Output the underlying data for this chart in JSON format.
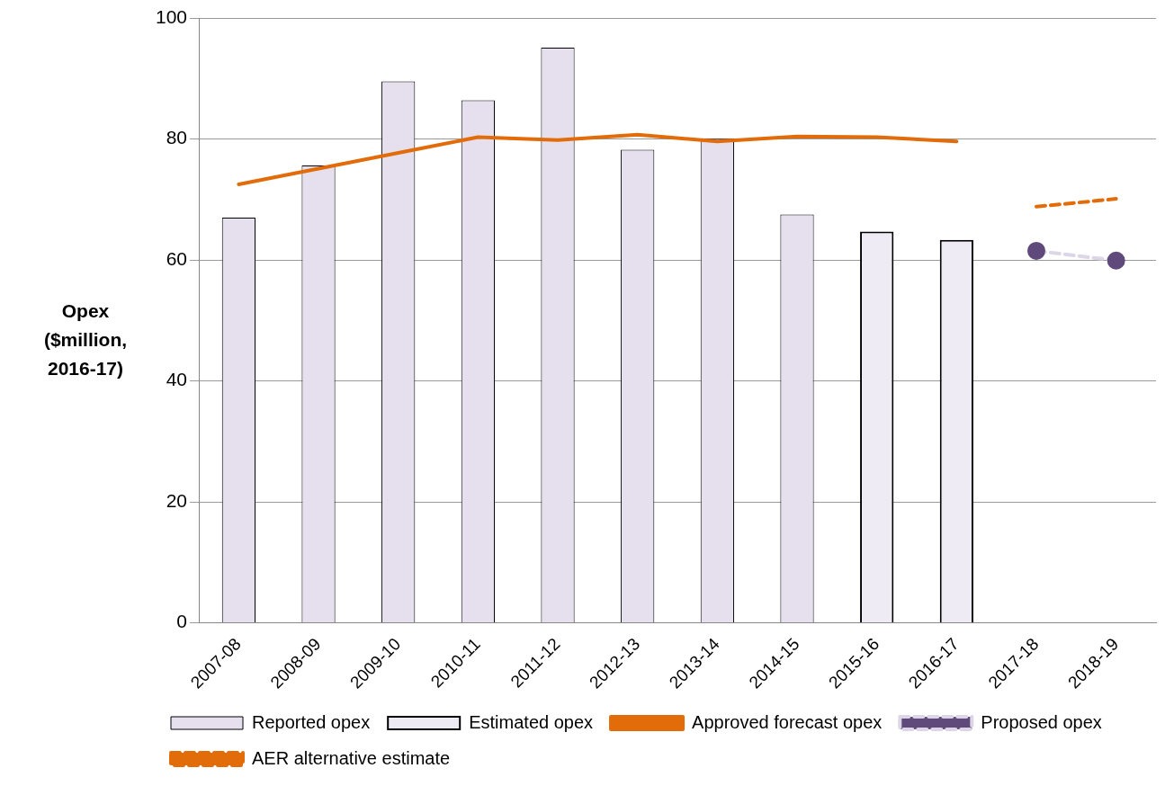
{
  "chart_data": {
    "type": "bar",
    "ylabel": "Opex ($million, 2016-17)",
    "categories": [
      "2007-08",
      "2008-09",
      "2009-10",
      "2010-11",
      "2011-12",
      "2012-13",
      "2013-14",
      "2014-15",
      "2015-16",
      "2016-17",
      "2017-18",
      "2018-19"
    ],
    "series": [
      {
        "name": "Reported opex",
        "color": "#e6e0ee",
        "values": [
          67.0,
          75.6,
          89.5,
          86.4,
          95.1,
          78.2,
          80.1,
          67.5,
          null,
          null,
          null,
          null
        ]
      },
      {
        "name": "Estimated opex",
        "color": "#efebf4",
        "values": [
          null,
          null,
          null,
          null,
          null,
          null,
          null,
          null,
          64.7,
          63.3,
          null,
          null
        ]
      },
      {
        "name": "Approved forecast opex",
        "type": "line",
        "color": "#e36c0a",
        "marker": "none",
        "line_style": "solid",
        "values": [
          72.5,
          75.1,
          77.7,
          80.3,
          79.8,
          80.7,
          79.6,
          80.4,
          80.3,
          79.6,
          null,
          null
        ]
      },
      {
        "name": "Proposed opex",
        "type": "line",
        "color": "#604a7b",
        "marker": "circle",
        "line_style": "dashed",
        "values": [
          null,
          null,
          null,
          null,
          null,
          null,
          null,
          null,
          null,
          null,
          61.5,
          59.9
        ]
      },
      {
        "name": "AER alternative estimate",
        "type": "line",
        "color": "#e36c0a",
        "marker": "none",
        "line_style": "dashed",
        "values": [
          null,
          null,
          null,
          null,
          null,
          null,
          null,
          null,
          null,
          null,
          68.8,
          70.1
        ]
      }
    ],
    "ylim": [
      0,
      100
    ],
    "yticks": [
      0,
      20,
      40,
      60,
      80,
      100
    ],
    "grid": "y",
    "legend": "bottom"
  }
}
